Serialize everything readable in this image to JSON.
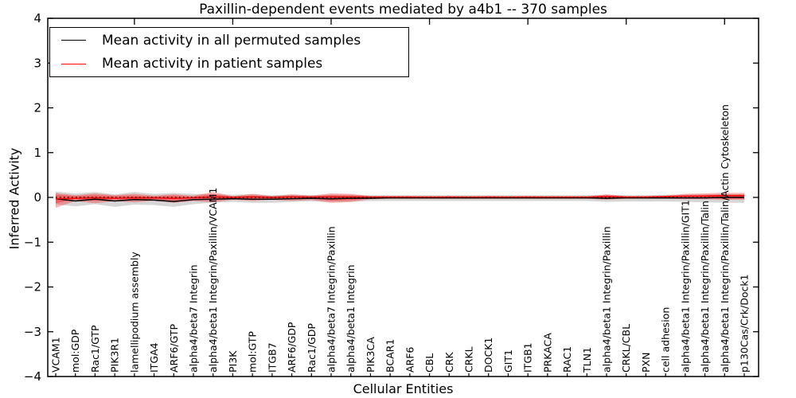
{
  "figure": {
    "title": "Paxillin-dependent events mediated by a4b1 -- 370 samples",
    "xlabel": "Cellular Entities",
    "ylabel": "Inferred Activity"
  },
  "legend": {
    "items": [
      {
        "label": "Mean activity in all permuted samples",
        "color": "#000000"
      },
      {
        "label": "Mean activity in patient samples",
        "color": "#ff0000"
      }
    ]
  },
  "chart_data": {
    "type": "line",
    "title": "Paxillin-dependent events mediated by a4b1 -- 370 samples",
    "xlabel": "Cellular Entities",
    "ylabel": "Inferred Activity",
    "ylim": [
      -4,
      4
    ],
    "yticks": [
      {
        "value": 4,
        "label": "4"
      },
      {
        "value": 3,
        "label": "3"
      },
      {
        "value": 2,
        "label": "2"
      },
      {
        "value": 1,
        "label": "1"
      },
      {
        "value": 0,
        "label": "0"
      },
      {
        "value": -1,
        "label": "−1"
      },
      {
        "value": -2,
        "label": "−2"
      },
      {
        "value": -3,
        "label": "−3"
      },
      {
        "value": -4,
        "label": "−4"
      }
    ],
    "grid": false,
    "legend_position": "upper left",
    "top_tick_indices": [
      4,
      9,
      14,
      19,
      24,
      29,
      34
    ],
    "categories": [
      "VCAM1",
      "mol:GDP",
      "Rac1/GTP",
      "PIK3R1",
      "lamellipodium assembly",
      "ITGA4",
      "ARF6/GTP",
      "alpha4/beta7 Integrin",
      "alpha4/beta1 Integrin/Paxillin/VCAM1",
      "PI3K",
      "mol:GTP",
      "ITGB7",
      "ARF6/GDP",
      "Rac1/GDP",
      "alpha4/beta7 Integrin/Paxillin",
      "alpha4/beta1 Integrin",
      "PIK3CA",
      "BCAR1",
      "ARF6",
      "CBL",
      "CRK",
      "CRKL",
      "DOCK1",
      "GIT1",
      "ITGB1",
      "PRKACA",
      "RAC1",
      "TLN1",
      "alpha4/beta1 Integrin/Paxillin",
      "CRKL/CBL",
      "PXN",
      "cell adhesion",
      "alpha4/beta1 Integrin/Paxillin/GIT1",
      "alpha4/beta1 Integrin/Paxillin/Talin",
      "alpha4/beta1 Integrin/Paxillin/Talin/Actin Cytoskeleton",
      "p130Cas/Crk/Dock1"
    ],
    "series": [
      {
        "name": "Mean activity in all permuted samples",
        "color": "#000000",
        "style": "solid",
        "values": [
          -0.03,
          -0.08,
          -0.04,
          -0.08,
          -0.05,
          -0.06,
          -0.09,
          -0.05,
          -0.04,
          -0.03,
          -0.04,
          -0.04,
          -0.03,
          -0.02,
          -0.03,
          -0.02,
          -0.02,
          -0.01,
          -0.01,
          -0.01,
          -0.01,
          -0.01,
          -0.01,
          -0.01,
          -0.01,
          -0.01,
          -0.01,
          -0.01,
          -0.02,
          -0.01,
          -0.01,
          -0.01,
          -0.01,
          -0.01,
          0.0,
          0.0
        ]
      },
      {
        "name": "Mean activity in patient samples",
        "color": "#ff0000",
        "style": "solid",
        "values": [
          -0.03,
          -0.02,
          -0.01,
          -0.02,
          -0.01,
          -0.01,
          -0.02,
          -0.01,
          0.01,
          0.0,
          0.01,
          0.0,
          0.01,
          0.01,
          0.01,
          0.01,
          0.01,
          0.01,
          0.01,
          0.01,
          0.01,
          0.01,
          0.01,
          0.01,
          0.01,
          0.01,
          0.01,
          0.01,
          0.02,
          0.01,
          0.01,
          0.02,
          0.03,
          0.03,
          0.04,
          0.04
        ]
      }
    ],
    "zero_line": {
      "y": 0,
      "color": "#000000",
      "style": "dotted"
    },
    "bands": [
      {
        "name": "permuted samples envelope",
        "color": "#000000",
        "opacity": 0.16,
        "upper": [
          0.13,
          0.09,
          0.12,
          0.07,
          0.12,
          0.08,
          0.1,
          0.08,
          0.07,
          0.06,
          0.07,
          0.05,
          0.06,
          0.05,
          0.06,
          0.06,
          0.05,
          0.05,
          0.05,
          0.05,
          0.05,
          0.05,
          0.05,
          0.05,
          0.05,
          0.05,
          0.05,
          0.05,
          0.06,
          0.05,
          0.05,
          0.06,
          0.06,
          0.07,
          0.07,
          0.07
        ],
        "lower": [
          -0.15,
          -0.2,
          -0.15,
          -0.21,
          -0.16,
          -0.17,
          -0.21,
          -0.15,
          -0.12,
          -0.1,
          -0.12,
          -0.12,
          -0.1,
          -0.09,
          -0.1,
          -0.1,
          -0.08,
          -0.08,
          -0.08,
          -0.08,
          -0.08,
          -0.08,
          -0.08,
          -0.08,
          -0.08,
          -0.08,
          -0.08,
          -0.08,
          -0.1,
          -0.09,
          -0.09,
          -0.09,
          -0.1,
          -0.11,
          -0.12,
          -0.12
        ]
      },
      {
        "name": "patient samples envelope (outer)",
        "color": "#ff0000",
        "opacity": 0.3,
        "upper": [
          0.1,
          0.05,
          0.09,
          0.05,
          0.08,
          0.04,
          0.07,
          0.04,
          0.12,
          0.03,
          0.08,
          0.03,
          0.07,
          0.04,
          0.09,
          0.08,
          0.03,
          0.03,
          0.03,
          0.02,
          0.03,
          0.02,
          0.03,
          0.02,
          0.03,
          0.02,
          0.02,
          0.02,
          0.07,
          0.03,
          0.03,
          0.04,
          0.08,
          0.09,
          0.1,
          0.1
        ],
        "lower": [
          -0.23,
          -0.08,
          -0.13,
          -0.08,
          -0.11,
          -0.07,
          -0.12,
          -0.08,
          -0.11,
          -0.05,
          -0.08,
          -0.05,
          -0.08,
          -0.06,
          -0.12,
          -0.1,
          -0.04,
          -0.03,
          -0.03,
          -0.03,
          -0.03,
          -0.03,
          -0.03,
          -0.03,
          -0.03,
          -0.03,
          -0.03,
          -0.03,
          -0.05,
          -0.03,
          -0.03,
          -0.03,
          -0.04,
          -0.04,
          -0.05,
          -0.05
        ]
      },
      {
        "name": "patient samples envelope (inner)",
        "color": "#ff0000",
        "opacity": 0.35,
        "upper": [
          0.06,
          0.03,
          0.05,
          0.03,
          0.04,
          0.02,
          0.04,
          0.02,
          0.07,
          0.02,
          0.04,
          0.02,
          0.04,
          0.02,
          0.05,
          0.04,
          0.02,
          0.02,
          0.02,
          0.01,
          0.02,
          0.01,
          0.02,
          0.01,
          0.02,
          0.01,
          0.01,
          0.01,
          0.04,
          0.02,
          0.02,
          0.02,
          0.04,
          0.05,
          0.06,
          0.06
        ],
        "lower": [
          -0.13,
          -0.04,
          -0.07,
          -0.04,
          -0.06,
          -0.04,
          -0.07,
          -0.04,
          -0.06,
          -0.03,
          -0.04,
          -0.03,
          -0.04,
          -0.03,
          -0.07,
          -0.06,
          -0.02,
          -0.02,
          -0.02,
          -0.02,
          -0.02,
          -0.02,
          -0.02,
          -0.02,
          -0.02,
          -0.02,
          -0.02,
          -0.02,
          -0.03,
          -0.02,
          -0.02,
          -0.02,
          -0.02,
          -0.02,
          -0.03,
          -0.03
        ]
      }
    ]
  }
}
